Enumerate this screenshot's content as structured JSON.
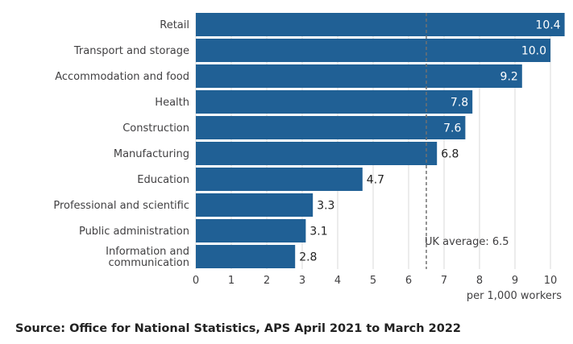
{
  "chart_data": {
    "type": "bar",
    "orientation": "horizontal",
    "categories": [
      "Retail",
      "Transport and storage",
      "Accommodation and food",
      "Health",
      "Construction",
      "Manufacturing",
      "Education",
      "Professional and scientific",
      "Public administration",
      "Information and communication"
    ],
    "category_lines": [
      [
        "Retail"
      ],
      [
        "Transport and storage"
      ],
      [
        "Accommodation and food"
      ],
      [
        "Health"
      ],
      [
        "Construction"
      ],
      [
        "Manufacturing"
      ],
      [
        "Education"
      ],
      [
        "Professional and scientific"
      ],
      [
        "Public administration"
      ],
      [
        "Information and",
        "communication"
      ]
    ],
    "values": [
      10.4,
      10.0,
      9.2,
      7.8,
      7.6,
      6.8,
      4.7,
      3.3,
      3.1,
      2.8
    ],
    "value_labels": [
      "10.4",
      "10.0",
      "9.2",
      "7.8",
      "7.6",
      "6.8",
      "4.7",
      "3.3",
      "3.1",
      "2.8"
    ],
    "xlabel": "per 1,000 workers",
    "xlim": [
      0,
      10.4
    ],
    "x_ticks": [
      0,
      1,
      2,
      3,
      4,
      5,
      6,
      7,
      8,
      9,
      10
    ],
    "grid": "vertical",
    "reference_line": {
      "value": 6.5,
      "label": "UK average: 6.5",
      "style": "dashed"
    },
    "colors": {
      "bar": "#206095",
      "grid": "#d9d9d9",
      "reference": "#707070",
      "label_inside": "#ffffff",
      "label_outside": "#222222",
      "text": "#414042"
    }
  },
  "source": "Source: Office for National Statistics, APS April 2021 to March 2022"
}
